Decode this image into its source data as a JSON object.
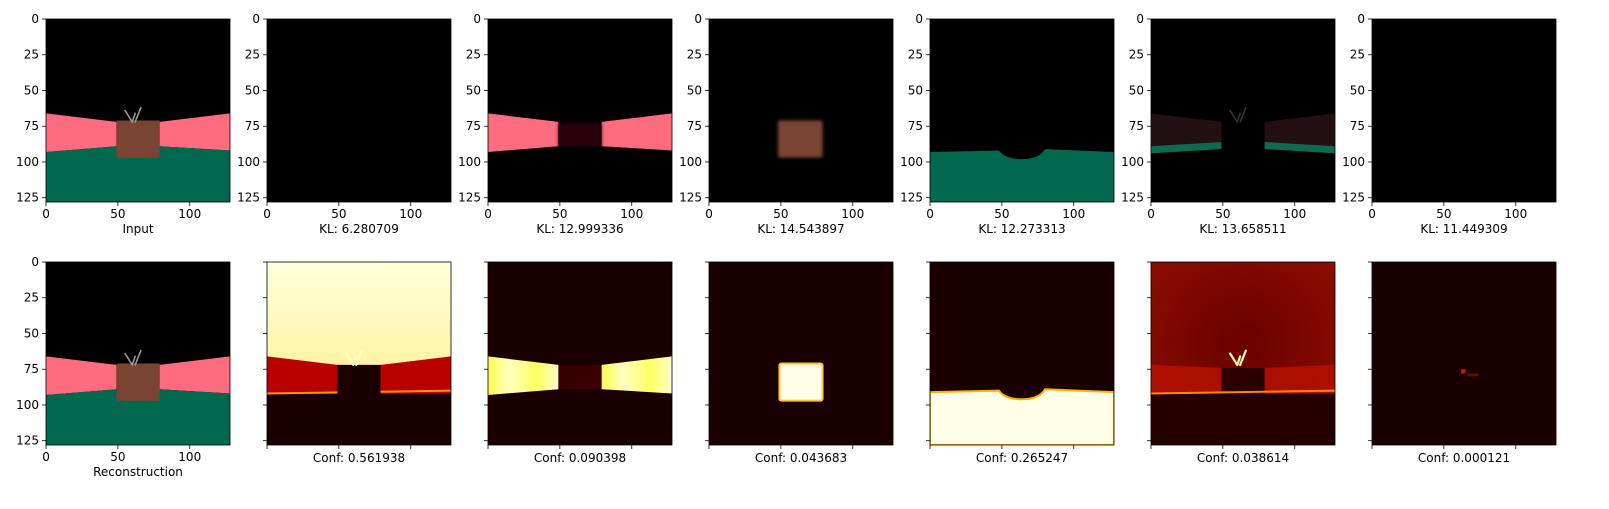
{
  "colors": {
    "background": "#000000",
    "wall": "#ff6b7f",
    "floor": "#00684f",
    "object": "#7a4432",
    "antenna": "#9a9a9a",
    "heat_dark": "#1a0000",
    "heat_mid": "#b80000",
    "heat_bright": "#ffff60",
    "heat_max": "#ffffe8"
  },
  "chart_data": {
    "type": "image-grid",
    "rows": [
      {
        "row": "decomposition",
        "panels": [
          {
            "caption": "Input",
            "content": "full-scene"
          },
          {
            "caption": "KL: 6.280709",
            "content": "empty"
          },
          {
            "caption": "KL: 12.999336",
            "content": "wall"
          },
          {
            "caption": "KL: 14.543897",
            "content": "object"
          },
          {
            "caption": "KL: 12.273313",
            "content": "floor"
          },
          {
            "caption": "KL: 13.658511",
            "content": "faint-residual"
          },
          {
            "caption": "KL: 11.449309",
            "content": "empty"
          }
        ]
      },
      {
        "row": "masks",
        "panels": [
          {
            "caption": "Reconstruction",
            "content": "full-scene"
          },
          {
            "caption": "Conf: 0.561938",
            "content": "mask-background"
          },
          {
            "caption": "Conf: 0.090398",
            "content": "mask-wall"
          },
          {
            "caption": "Conf: 0.043683",
            "content": "mask-object"
          },
          {
            "caption": "Conf: 0.265247",
            "content": "mask-floor"
          },
          {
            "caption": "Conf: 0.038614",
            "content": "mask-residual"
          },
          {
            "caption": "Conf: 0.000121",
            "content": "mask-empty"
          }
        ]
      }
    ],
    "x_ticks": [
      0,
      50,
      100
    ],
    "y_ticks": [
      0,
      25,
      50,
      75,
      100,
      125
    ],
    "xlim": [
      0,
      128
    ],
    "ylim": [
      128,
      0
    ]
  }
}
